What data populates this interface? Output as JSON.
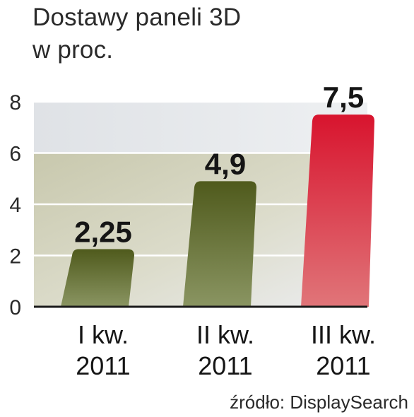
{
  "title_line1": "Dostawy paneli 3D",
  "title_line2": "w proc.",
  "source": "źródło: DisplaySearch",
  "chart_data": {
    "type": "bar",
    "title": "Dostawy paneli 3D w proc.",
    "categories": [
      [
        "I kw.",
        "2011"
      ],
      [
        "II kw.",
        "2011"
      ],
      [
        "III kw.",
        "2011"
      ]
    ],
    "values": [
      2.25,
      4.9,
      7.5
    ],
    "value_labels": [
      "2,25",
      "4,9",
      "7,5"
    ],
    "ylim": [
      0,
      8
    ],
    "yticks": [
      0,
      2,
      4,
      6,
      8
    ],
    "grid": true,
    "colors": {
      "bar_olive_top": "#4f5a1c",
      "bar_olive_bottom": "#8a9562",
      "bar_red_top": "#d8142e",
      "bar_red_bottom": "#e07579",
      "band_light": "#e4e7ea",
      "band_green": "#c9c9b2"
    }
  }
}
